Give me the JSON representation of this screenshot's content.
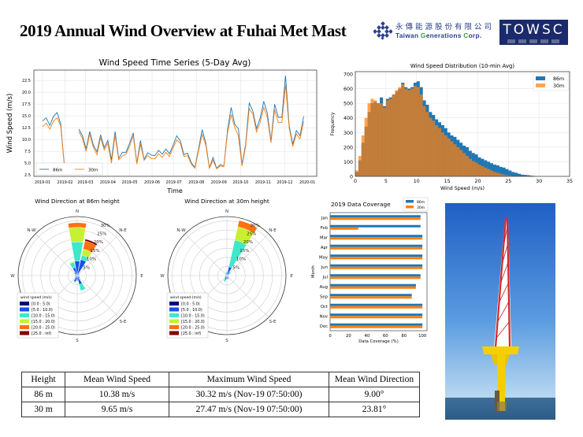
{
  "title": "2019 Annual Wind Overview at Fuhai Met Mast",
  "logo": {
    "company_cn": "永傳能源股份有限公司",
    "company_en": "Taiwan Generations Corp.",
    "brand": "TOWSC",
    "navy": "#1b2a6b"
  },
  "colors": {
    "86m": "#1f77b4",
    "30m": "#ff7f0e"
  },
  "chart_data": [
    {
      "type": "line",
      "title": "Wind Speed Time Series (5-Day Avg)",
      "xlabel": "Time",
      "ylabel": "Wind Speed (m/s)",
      "ylim": [
        2.2,
        24.7
      ],
      "xlim": [
        "2018-12-20",
        "2020-01-14"
      ],
      "yticks": [
        "2.5",
        "5.0",
        "7.5",
        "10.0",
        "12.5",
        "15.0",
        "17.5",
        "20.0",
        "22.5"
      ],
      "xticks": [
        "2019-01",
        "2019-02",
        "2019-03",
        "2019-04",
        "2019-05",
        "2019-06",
        "2019-07",
        "2019-08",
        "2019-09",
        "2019-10",
        "2019-11",
        "2019-12",
        "2020-01"
      ],
      "grid": true,
      "legend": "lower-left",
      "x": [
        "2019-01-01",
        "2019-01-06",
        "2019-01-11",
        "2019-01-16",
        "2019-01-21",
        "2019-01-26",
        "2019-01-31",
        "2019-02-20",
        "2019-02-25",
        "2019-03-02",
        "2019-03-07",
        "2019-03-12",
        "2019-03-17",
        "2019-03-22",
        "2019-03-27",
        "2019-04-01",
        "2019-04-06",
        "2019-04-11",
        "2019-04-16",
        "2019-04-21",
        "2019-04-26",
        "2019-05-01",
        "2019-05-06",
        "2019-05-11",
        "2019-05-16",
        "2019-05-21",
        "2019-05-26",
        "2019-05-31",
        "2019-06-05",
        "2019-06-10",
        "2019-06-15",
        "2019-06-20",
        "2019-06-25",
        "2019-06-30",
        "2019-07-05",
        "2019-07-10",
        "2019-07-15",
        "2019-07-20",
        "2019-07-25",
        "2019-07-30",
        "2019-08-04",
        "2019-08-09",
        "2019-08-14",
        "2019-08-19",
        "2019-08-24",
        "2019-08-29",
        "2019-09-03",
        "2019-09-08",
        "2019-09-13",
        "2019-09-18",
        "2019-09-23",
        "2019-09-28",
        "2019-10-03",
        "2019-10-08",
        "2019-10-13",
        "2019-10-18",
        "2019-10-23",
        "2019-10-28",
        "2019-11-02",
        "2019-11-07",
        "2019-11-12",
        "2019-11-17",
        "2019-11-22",
        "2019-11-27",
        "2019-12-02",
        "2019-12-07",
        "2019-12-12",
        "2019-12-17",
        "2019-12-22",
        "2019-12-27"
      ],
      "series": [
        {
          "name": "86m",
          "values": [
            13.9,
            14.6,
            13.0,
            14.9,
            15.7,
            13.3,
            4.5,
            12.2,
            10.8,
            8.0,
            11.7,
            8.8,
            7.4,
            11.0,
            8.3,
            9.8,
            5.7,
            11.7,
            6.0,
            7.3,
            7.3,
            9.2,
            11.4,
            5.0,
            9.8,
            5.8,
            7.2,
            6.7,
            6.6,
            7.7,
            6.9,
            8.0,
            7.0,
            8.8,
            10.8,
            9.7,
            6.8,
            7.1,
            5.1,
            4.1,
            8.0,
            12.1,
            9.3,
            4.0,
            6.2,
            3.9,
            4.7,
            4.4,
            12.0,
            16.8,
            13.2,
            12.3,
            4.7,
            9.0,
            17.8,
            16.0,
            12.3,
            14.5,
            18.1,
            15.5,
            9.7,
            17.5,
            14.7,
            14.7,
            23.5,
            13.0,
            9.0,
            11.9,
            10.8,
            14.9
          ]
        },
        {
          "name": "30m",
          "values": [
            12.7,
            13.5,
            12.2,
            13.9,
            14.6,
            12.8,
            4.3,
            11.7,
            10.2,
            7.5,
            11.2,
            8.3,
            6.8,
            10.4,
            7.8,
            9.2,
            5.0,
            10.9,
            5.7,
            6.5,
            6.9,
            8.6,
            10.8,
            4.8,
            9.0,
            5.6,
            6.6,
            6.0,
            5.9,
            7.0,
            6.2,
            7.3,
            6.4,
            8.2,
            9.9,
            9.2,
            6.4,
            6.6,
            4.8,
            3.9,
            7.6,
            11.1,
            8.8,
            3.9,
            5.6,
            3.8,
            4.4,
            4.3,
            11.4,
            15.3,
            12.5,
            10.8,
            4.4,
            8.5,
            16.5,
            15.4,
            11.6,
            13.6,
            16.8,
            14.6,
            9.3,
            16.3,
            13.6,
            13.6,
            21.6,
            12.5,
            8.5,
            11.2,
            10.1,
            13.8
          ]
        }
      ]
    },
    {
      "type": "bar",
      "subtype": "histogram",
      "title": "Wind Speed Distribution (10-min Avg)",
      "xlabel": "Wind Speed (m/s)",
      "ylabel": "Frequency",
      "xlim": [
        0,
        35
      ],
      "ylim": [
        0,
        716
      ],
      "xticks": [
        "0",
        "5",
        "10",
        "15",
        "20",
        "25",
        "30",
        "35"
      ],
      "yticks": [
        "0",
        "100",
        "200",
        "300",
        "400",
        "500",
        "600",
        "700"
      ],
      "grid": true,
      "legend": "top-right",
      "bin_width": 0.5,
      "bin_start": 0,
      "series": [
        {
          "name": "86m",
          "values": [
            30,
            110,
            230,
            340,
            440,
            500,
            510,
            500,
            540,
            480,
            530,
            540,
            560,
            580,
            600,
            640,
            610,
            600,
            610,
            640,
            650,
            610,
            520,
            490,
            440,
            420,
            390,
            370,
            350,
            330,
            300,
            280,
            270,
            250,
            230,
            210,
            200,
            175,
            160,
            150,
            130,
            120,
            110,
            100,
            90,
            80,
            75,
            65,
            60,
            50,
            40,
            30,
            25,
            18,
            12,
            10,
            8,
            5,
            3,
            1
          ]
        },
        {
          "name": "30m",
          "values": [
            40,
            140,
            280,
            400,
            500,
            530,
            520,
            500,
            500,
            470,
            520,
            530,
            560,
            590,
            610,
            630,
            600,
            590,
            600,
            620,
            610,
            560,
            480,
            440,
            400,
            380,
            350,
            330,
            300,
            280,
            260,
            240,
            220,
            200,
            180,
            160,
            140,
            120,
            105,
            95,
            80,
            70,
            60,
            50,
            40,
            30,
            25,
            18,
            12,
            8,
            5,
            3,
            2,
            1,
            0,
            0,
            0,
            0,
            0,
            0
          ]
        }
      ]
    },
    {
      "type": "bar",
      "subtype": "windrose",
      "title": "Wind Direction at 86m height",
      "directions": [
        "N",
        "NNE",
        "NE",
        "ENE",
        "E",
        "ESE",
        "SE",
        "SSE",
        "S",
        "SSW",
        "SW",
        "WSW",
        "W",
        "WNW",
        "NW",
        "NNW"
      ],
      "direction_labels": {
        "N": "N",
        "NE": "N-E",
        "E": "E",
        "SE": "S-E",
        "S": "S",
        "W": "W",
        "NW": "N-W"
      },
      "ring_labels": [
        "5%",
        "10%",
        "15%",
        "20%",
        "25%",
        "30%"
      ],
      "rmax": 32.4,
      "legend_title": "wind speed (m/s)",
      "bins": [
        "[0.0 : 5.0)",
        "[5.0 : 10.0)",
        "[10.0 : 15.0)",
        "[15.0 : 20.0)",
        "[20.0 : 25.0)",
        "[25.0 : inf)"
      ],
      "bin_colors": [
        "#00007f",
        "#1550e8",
        "#3ee8c8",
        "#c8f030",
        "#ff7010",
        "#800000"
      ],
      "values_pct": [
        [
          0.5,
          7.5,
          10.5,
          8,
          2.5,
          0
        ],
        [
          1,
          8,
          2.5,
          3.5,
          4.5,
          1
        ],
        [
          0.3,
          1,
          0.3,
          0,
          0,
          0
        ],
        [
          0.3,
          0.8,
          0,
          0,
          0,
          0
        ],
        [
          0.3,
          0.6,
          0,
          0,
          0,
          0
        ],
        [
          0.3,
          0.8,
          0,
          0,
          0,
          0
        ],
        [
          0.3,
          1.5,
          0.3,
          0,
          0,
          0
        ],
        [
          0.5,
          4.5,
          3.5,
          0,
          0,
          0
        ],
        [
          0.5,
          2,
          0.5,
          0,
          0,
          0
        ],
        [
          0.5,
          3,
          0.5,
          0,
          0,
          0
        ],
        [
          0.3,
          1.2,
          0.3,
          0,
          0,
          0
        ],
        [
          0.3,
          0.8,
          0,
          0,
          0,
          0
        ],
        [
          0.3,
          0.6,
          0,
          0,
          0,
          0
        ],
        [
          0.3,
          0.8,
          0,
          0,
          0,
          0
        ],
        [
          0.3,
          1.5,
          0.5,
          0,
          0,
          0
        ],
        [
          0.5,
          4,
          3,
          0.5,
          0,
          0
        ]
      ]
    },
    {
      "type": "bar",
      "subtype": "windrose",
      "title": "Wind Direction at 30m height",
      "directions": [
        "N",
        "NNE",
        "NE",
        "ENE",
        "E",
        "ESE",
        "SE",
        "SSE",
        "S",
        "SSW",
        "SW",
        "WSW",
        "W",
        "WNW",
        "NW",
        "NNW"
      ],
      "direction_labels": {
        "N": "N",
        "NE": "N-E",
        "E": "E",
        "SE": "S-E",
        "S": "S",
        "W": "W",
        "NW": "N-W"
      },
      "ring_labels": [
        "5%",
        "10%",
        "15%",
        "20%",
        "25%",
        "30%"
      ],
      "rmax": 32.4,
      "legend_title": "wind speed (m/s)",
      "bins": [
        "[0.0 : 5.0)",
        "[5.0 : 10.0)",
        "[10.0 : 15.0)",
        "[15.0 : 20.0)",
        "[20.0 : 25.0)",
        "[25.0 : inf)"
      ],
      "bin_colors": [
        "#00007f",
        "#1550e8",
        "#3ee8c8",
        "#c8f030",
        "#ff7010",
        "#800000"
      ],
      "values_pct": [
        [
          0.3,
          1.5,
          0.5,
          0,
          0,
          0
        ],
        [
          0.5,
          4.5,
          15,
          7.5,
          3.5,
          0
        ],
        [
          0.5,
          1.5,
          0.8,
          0,
          0,
          0
        ],
        [
          0.3,
          0.6,
          0,
          0,
          0,
          0
        ],
        [
          0.2,
          0.4,
          0,
          0,
          0,
          0
        ],
        [
          0.2,
          0.4,
          0,
          0,
          0,
          0
        ],
        [
          0.3,
          0.8,
          0,
          0,
          0,
          0
        ],
        [
          0.3,
          1.5,
          0.3,
          0,
          0,
          0
        ],
        [
          0.3,
          1.5,
          0.5,
          0,
          0,
          0
        ],
        [
          0.5,
          2,
          1,
          0,
          0,
          0
        ],
        [
          0.3,
          1.2,
          0.3,
          0,
          0,
          0
        ],
        [
          0.3,
          0.6,
          0,
          0,
          0,
          0
        ],
        [
          0.2,
          0.4,
          0,
          0,
          0,
          0
        ],
        [
          0.2,
          0.5,
          0,
          0,
          0,
          0
        ],
        [
          0.3,
          0.8,
          0,
          0,
          0,
          0
        ],
        [
          0.3,
          1,
          0.5,
          0,
          0,
          0
        ]
      ]
    },
    {
      "type": "bar",
      "orientation": "horizontal",
      "title": "2019 Data Coverage",
      "xlabel": "Data Coverage (%)",
      "ylabel": "Month",
      "xlim": [
        0,
        105
      ],
      "xticks": [
        "0",
        "20",
        "40",
        "60",
        "80",
        "100"
      ],
      "legend": "top-right",
      "categories": [
        "Jan",
        "Feb",
        "Mar",
        "Apr",
        "May",
        "Jun",
        "Jul",
        "Aug",
        "Sep",
        "Oct",
        "Nov",
        "Dec"
      ],
      "series": [
        {
          "name": "86m",
          "values": [
            98,
            98,
            100,
            100,
            100,
            100,
            98,
            93,
            88.5,
            100,
            100,
            100
          ]
        },
        {
          "name": "30m",
          "values": [
            98,
            30.5,
            100,
            100,
            100,
            100,
            98,
            93,
            88.5,
            100,
            100,
            100
          ]
        }
      ]
    }
  ],
  "table": {
    "headers": [
      "Height",
      "Mean Wind Speed",
      "Maximum Wind Speed",
      "Mean Wind Direction"
    ],
    "rows": [
      [
        "86 m",
        "10.38 m/s",
        "30.32 m/s (Nov-19 07:50:00)",
        "9.00°"
      ],
      [
        "30 m",
        "9.65 m/s",
        "27.47 m/s (Nov-19 07:50:00)",
        "23.81°"
      ]
    ]
  }
}
